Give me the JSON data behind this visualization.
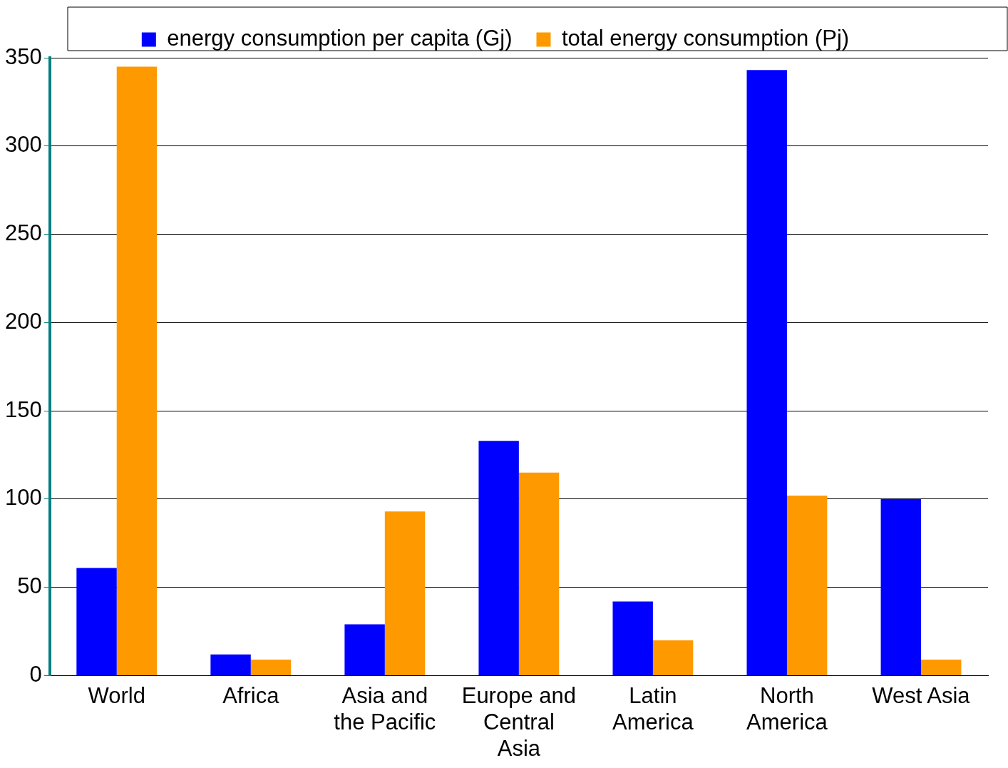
{
  "chart_data": {
    "type": "bar",
    "categories": [
      "World",
      "Africa",
      "Asia and the Pacific",
      "Europe and Central Asia",
      "Latin America",
      "North America",
      "West Asia"
    ],
    "series": [
      {
        "name": "energy consumption per capita (Gj)",
        "color": "#0000ff",
        "values": [
          61,
          12,
          29,
          133,
          42,
          343,
          100
        ]
      },
      {
        "name": "total energy consumption (Pj)",
        "color": "#ff9900",
        "values": [
          345,
          9,
          93,
          115,
          20,
          102,
          9
        ]
      }
    ],
    "ylim": [
      0,
      350
    ],
    "yticks": [
      0,
      50,
      100,
      150,
      200,
      250,
      300,
      350
    ],
    "grid": "y",
    "legend": "top"
  }
}
